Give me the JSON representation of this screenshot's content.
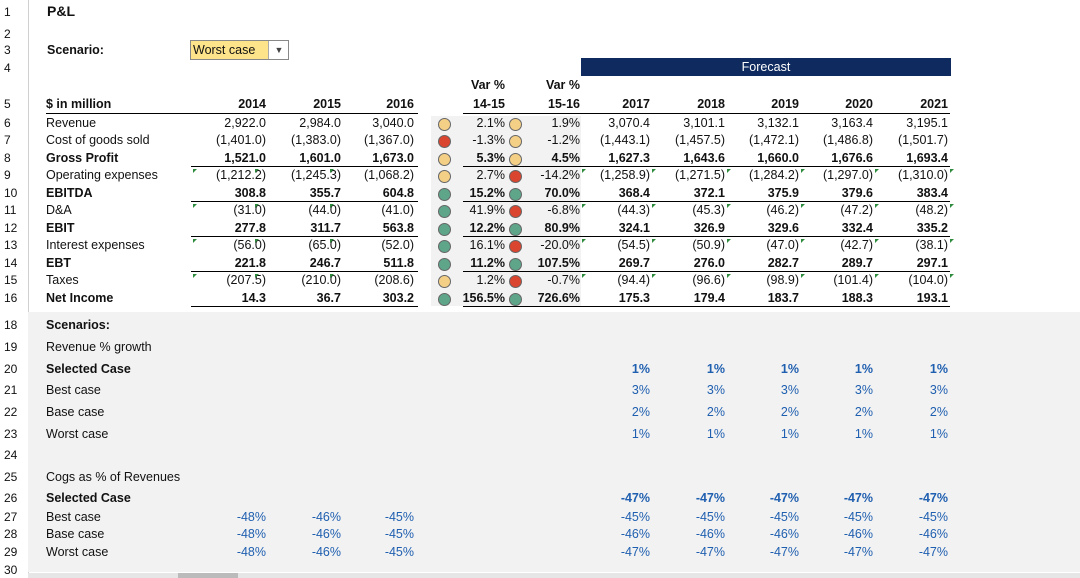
{
  "sheet_title": "P&L",
  "scenario_label": "Scenario:",
  "scenario_value": "Worst case",
  "forecast_label": "Forecast",
  "row_numbers": [
    "1",
    "2",
    "3",
    "4",
    "5",
    "6",
    "7",
    "8",
    "9",
    "10",
    "11",
    "12",
    "13",
    "14",
    "15",
    "16",
    "18",
    "19",
    "20",
    "21",
    "22",
    "23",
    "24",
    "25",
    "26",
    "27",
    "28",
    "29",
    "30"
  ],
  "header": {
    "unit": "$ in million",
    "years_hist": [
      "2014",
      "2015",
      "2016"
    ],
    "var1": [
      "Var %",
      "14-15"
    ],
    "var2": [
      "Var %",
      "15-16"
    ],
    "years_fc": [
      "2017",
      "2018",
      "2019",
      "2020",
      "2021"
    ]
  },
  "pl_rows": [
    {
      "label": "Revenue",
      "bold": false,
      "hist": [
        "2,922.0",
        "2,984.0",
        "3,040.0"
      ],
      "var1": "2.1%",
      "c1": "amber",
      "var2": "1.9%",
      "c2": "amber",
      "fc": [
        "3,070.4",
        "3,101.1",
        "3,132.1",
        "3,163.4",
        "3,195.1"
      ]
    },
    {
      "label": "Cost of goods sold",
      "bold": false,
      "hist": [
        "(1,401.0)",
        "(1,383.0)",
        "(1,367.0)"
      ],
      "var1": "-1.3%",
      "c1": "red",
      "var2": "-1.2%",
      "c2": "amber",
      "fc": [
        "(1,443.1)",
        "(1,457.5)",
        "(1,472.1)",
        "(1,486.8)",
        "(1,501.7)"
      ]
    },
    {
      "label": "Gross Profit",
      "bold": true,
      "hist": [
        "1,521.0",
        "1,601.0",
        "1,673.0"
      ],
      "var1": "5.3%",
      "c1": "amber",
      "var2": "4.5%",
      "c2": "amber",
      "fc": [
        "1,627.3",
        "1,643.6",
        "1,660.0",
        "1,676.6",
        "1,693.4"
      ]
    },
    {
      "label": "Operating expenses",
      "bold": false,
      "hist": [
        "(1,212.2)",
        "(1,245.3)",
        "(1,068.2)"
      ],
      "var1": "2.7%",
      "c1": "amber",
      "var2": "-14.2%",
      "c2": "red",
      "fc": [
        "(1,258.9)",
        "(1,271.5)",
        "(1,284.2)",
        "(1,297.0)",
        "(1,310.0)"
      ]
    },
    {
      "label": "EBITDA",
      "bold": true,
      "hist": [
        "308.8",
        "355.7",
        "604.8"
      ],
      "var1": "15.2%",
      "c1": "green",
      "var2": "70.0%",
      "c2": "green",
      "fc": [
        "368.4",
        "372.1",
        "375.9",
        "379.6",
        "383.4"
      ]
    },
    {
      "label": "D&A",
      "bold": false,
      "hist": [
        "(31.0)",
        "(44.0)",
        "(41.0)"
      ],
      "var1": "41.9%",
      "c1": "green",
      "var2": "-6.8%",
      "c2": "red",
      "fc": [
        "(44.3)",
        "(45.3)",
        "(46.2)",
        "(47.2)",
        "(48.2)"
      ]
    },
    {
      "label": "EBIT",
      "bold": true,
      "hist": [
        "277.8",
        "311.7",
        "563.8"
      ],
      "var1": "12.2%",
      "c1": "green",
      "var2": "80.9%",
      "c2": "green",
      "fc": [
        "324.1",
        "326.9",
        "329.6",
        "332.4",
        "335.2"
      ]
    },
    {
      "label": "Interest expenses",
      "bold": false,
      "hist": [
        "(56.0)",
        "(65.0)",
        "(52.0)"
      ],
      "var1": "16.1%",
      "c1": "green",
      "var2": "-20.0%",
      "c2": "red",
      "fc": [
        "(54.5)",
        "(50.9)",
        "(47.0)",
        "(42.7)",
        "(38.1)"
      ]
    },
    {
      "label": "EBT",
      "bold": true,
      "hist": [
        "221.8",
        "246.7",
        "511.8"
      ],
      "var1": "11.2%",
      "c1": "green",
      "var2": "107.5%",
      "c2": "green",
      "fc": [
        "269.7",
        "276.0",
        "282.7",
        "289.7",
        "297.1"
      ]
    },
    {
      "label": "Taxes",
      "bold": false,
      "hist": [
        "(207.5)",
        "(210.0)",
        "(208.6)"
      ],
      "var1": "1.2%",
      "c1": "amber",
      "var2": "-0.7%",
      "c2": "red",
      "fc": [
        "(94.4)",
        "(96.6)",
        "(98.9)",
        "(101.4)",
        "(104.0)"
      ]
    },
    {
      "label": "Net Income",
      "bold": true,
      "hist": [
        "14.3",
        "36.7",
        "303.2"
      ],
      "var1": "156.5%",
      "c1": "green",
      "var2": "726.6%",
      "c2": "green",
      "fc": [
        "175.3",
        "179.4",
        "183.7",
        "188.3",
        "193.1"
      ]
    }
  ],
  "scenarios_label": "Scenarios:",
  "revenue_block": {
    "title": "Revenue % growth",
    "rows": [
      {
        "label": "Selected Case",
        "bold": true,
        "fc": [
          "1%",
          "1%",
          "1%",
          "1%",
          "1%"
        ]
      },
      {
        "label": "Best case",
        "bold": false,
        "fc": [
          "3%",
          "3%",
          "3%",
          "3%",
          "3%"
        ]
      },
      {
        "label": "Base case",
        "bold": false,
        "fc": [
          "2%",
          "2%",
          "2%",
          "2%",
          "2%"
        ]
      },
      {
        "label": "Worst case",
        "bold": false,
        "fc": [
          "1%",
          "1%",
          "1%",
          "1%",
          "1%"
        ]
      }
    ]
  },
  "cogs_block": {
    "title": "Cogs as % of Revenues",
    "rows": [
      {
        "label": "Selected Case",
        "bold": true,
        "hist": [
          "",
          "",
          ""
        ],
        "fc": [
          "-47%",
          "-47%",
          "-47%",
          "-47%",
          "-47%"
        ]
      },
      {
        "label": "Best case",
        "bold": false,
        "hist": [
          "-48%",
          "-46%",
          "-45%"
        ],
        "fc": [
          "-45%",
          "-45%",
          "-45%",
          "-45%",
          "-45%"
        ]
      },
      {
        "label": "Base case",
        "bold": false,
        "hist": [
          "-48%",
          "-46%",
          "-45%"
        ],
        "fc": [
          "-46%",
          "-46%",
          "-46%",
          "-46%",
          "-46%"
        ]
      },
      {
        "label": "Worst case",
        "bold": false,
        "hist": [
          "-48%",
          "-46%",
          "-45%"
        ],
        "fc": [
          "-47%",
          "-47%",
          "-47%",
          "-47%",
          "-47%"
        ]
      }
    ]
  },
  "colors": {
    "amber": "#f4cf86",
    "red": "#d9452f",
    "green": "#5ea58a",
    "forecast_bar": "#0e2a5e",
    "selection": "#fde38a",
    "blue_text": "#1f5fb0"
  }
}
